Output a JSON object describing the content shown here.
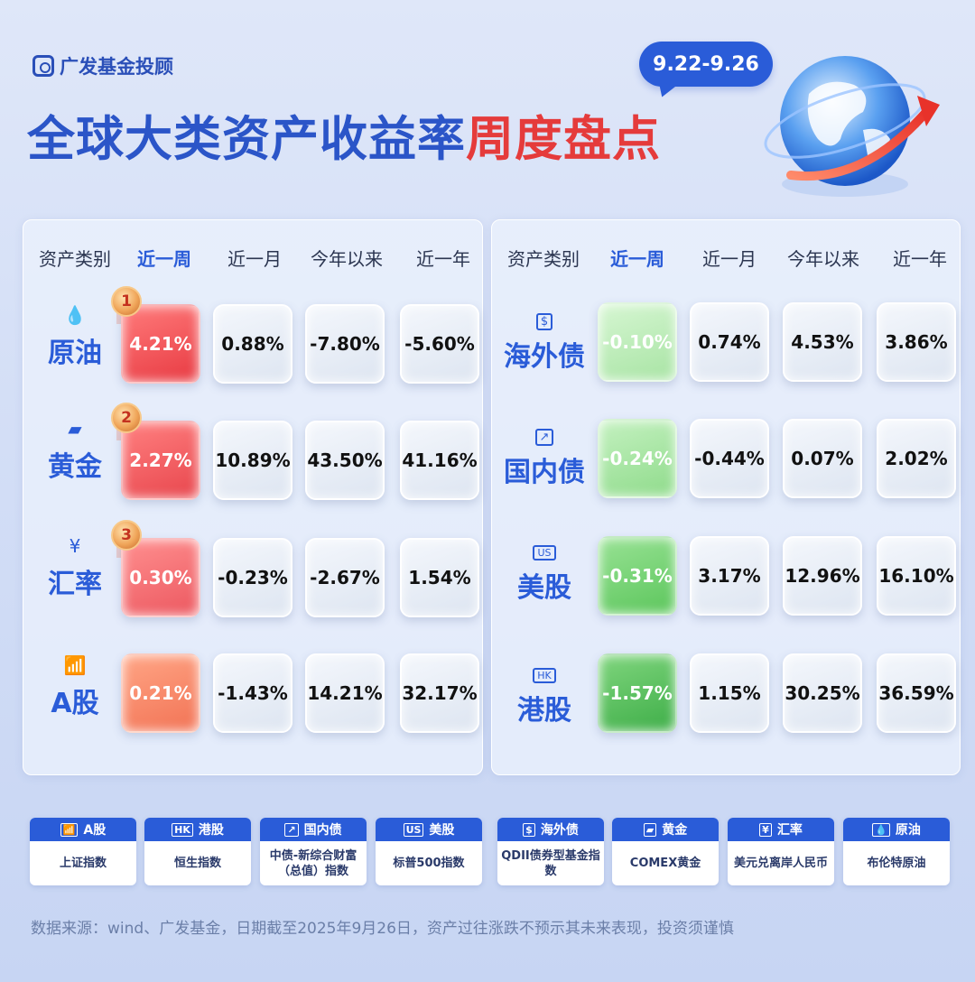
{
  "brand": {
    "name": "广发基金投顾"
  },
  "title": {
    "part1": "全球大类资产收益率",
    "part2": "周度盘点"
  },
  "date_range": "9.22-9.26",
  "headers": [
    "资产类别",
    "近一周",
    "近一月",
    "今年以来",
    "近一年"
  ],
  "left_rows": [
    {
      "name": "原油",
      "icon": "drop-icon",
      "glyph": "💧",
      "rank": "1",
      "week": "4.21%",
      "month": "0.88%",
      "ytd": "-7.80%",
      "year": "-5.60%",
      "week_color": "#f0484f"
    },
    {
      "name": "黄金",
      "icon": "gold-bar-icon",
      "glyph": "▰",
      "rank": "2",
      "week": "2.27%",
      "month": "10.89%",
      "ytd": "43.50%",
      "year": "41.16%",
      "week_color": "#f1555a"
    },
    {
      "name": "汇率",
      "icon": "yen-icon",
      "glyph": "¥",
      "rank": "3",
      "week": "0.30%",
      "month": "-0.23%",
      "ytd": "-2.67%",
      "year": "1.54%",
      "week_color": "#f36068"
    },
    {
      "name": "A股",
      "icon": "bar-chart-icon",
      "glyph": "📶",
      "rank": "",
      "week": "0.21%",
      "month": "-1.43%",
      "ytd": "14.21%",
      "year": "32.17%",
      "week_color": "#f6846a"
    }
  ],
  "right_rows": [
    {
      "name": "海外债",
      "icon": "dollar-bill-icon",
      "glyph": "$",
      "week": "-0.10%",
      "month": "0.74%",
      "ytd": "4.53%",
      "year": "3.86%",
      "week_color": "#b3eab0"
    },
    {
      "name": "国内债",
      "icon": "trend-chart-icon",
      "glyph": "↗",
      "week": "-0.24%",
      "month": "-0.44%",
      "ytd": "0.07%",
      "year": "2.02%",
      "week_color": "#99e195"
    },
    {
      "name": "美股",
      "icon": "us-badge-icon",
      "glyph": "US",
      "week": "-0.31%",
      "month": "3.17%",
      "ytd": "12.96%",
      "year": "16.10%",
      "week_color": "#6fd06d"
    },
    {
      "name": "港股",
      "icon": "hk-badge-icon",
      "glyph": "HK",
      "week": "-1.57%",
      "month": "1.15%",
      "ytd": "30.25%",
      "year": "36.59%",
      "week_color": "#4fbd56"
    }
  ],
  "legend": [
    {
      "head": "A股",
      "icon": "📶",
      "body": "上证指数"
    },
    {
      "head": "港股",
      "icon": "HK",
      "body": "恒生指数"
    },
    {
      "head": "国内债",
      "icon": "↗",
      "body": "中债-新综合财富（总值）指数"
    },
    {
      "head": "美股",
      "icon": "US",
      "body": "标普500指数"
    },
    {
      "head": "海外债",
      "icon": "$",
      "body": "QDII债券型基金指数"
    },
    {
      "head": "黄金",
      "icon": "▰",
      "body": "COMEX黄金"
    },
    {
      "head": "汇率",
      "icon": "¥",
      "body": "美元兑离岸人民币"
    },
    {
      "head": "原油",
      "icon": "💧",
      "body": "布伦特原油"
    }
  ],
  "footer": "数据来源：wind、广发基金，日期截至2025年9月26日，资产过往涨跌不预示其未来表现，投资须谨慎"
}
